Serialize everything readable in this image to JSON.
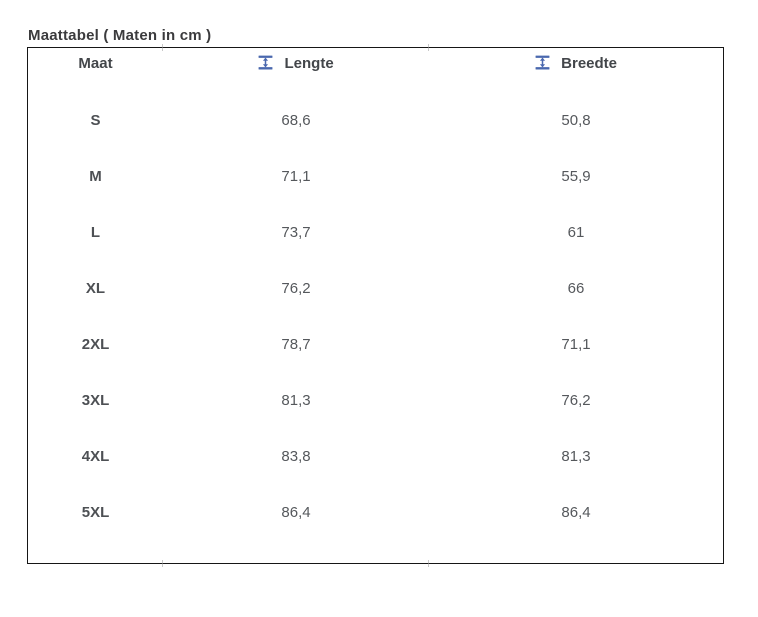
{
  "title": "Maattabel ( Maten in cm )",
  "chart_data": {
    "type": "table",
    "title": "Maattabel ( Maten in cm )",
    "units": "cm",
    "columns": [
      "Maat",
      "Lengte",
      "Breedte"
    ],
    "column_icons": [
      "",
      "height-measure-icon",
      "height-measure-icon"
    ],
    "rows": [
      [
        "S",
        "68,6",
        "50,8"
      ],
      [
        "M",
        "71,1",
        "55,9"
      ],
      [
        "L",
        "73,7",
        "61"
      ],
      [
        "XL",
        "76,2",
        "66"
      ],
      [
        "2XL",
        "78,7",
        "71,1"
      ],
      [
        "3XL",
        "81,3",
        "76,2"
      ],
      [
        "4XL",
        "83,8",
        "81,3"
      ],
      [
        "5XL",
        "86,4",
        "86,4"
      ]
    ]
  },
  "colors": {
    "icon_blue": "#4a68ae",
    "border": "#161616",
    "title_text": "#3b3b3d",
    "header_text": "#43464a",
    "size_text": "#4d5054",
    "cell_text": "#55585c"
  }
}
